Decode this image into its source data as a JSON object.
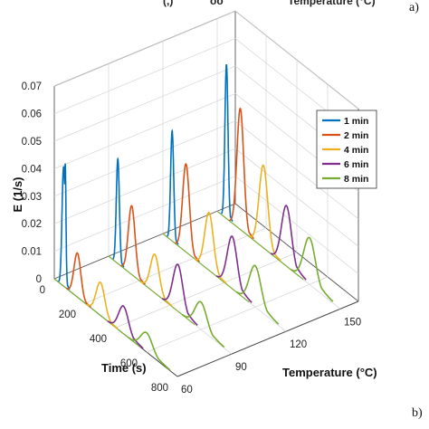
{
  "panel_labels": {
    "top": "a)",
    "bottom": "b)"
  },
  "top_fragment": {
    "left": "(,)",
    "mid": "oo",
    "right": "Temperature (°C)"
  },
  "chart_data": {
    "type": "line",
    "chart_kind": "3d-waterfall",
    "title": "",
    "zlabel": "E (1/s)",
    "xlabel": "Time (s)",
    "ylabel": "Temperature (°C)",
    "zlim": [
      0,
      0.07
    ],
    "xlim": [
      0,
      800
    ],
    "ylim": [
      60,
      160
    ],
    "z_ticks": [
      "0",
      "0.01",
      "0.02",
      "0.03",
      "0.04",
      "0.05",
      "0.06",
      "0.07"
    ],
    "x_ticks": [
      "0",
      "200",
      "400",
      "600",
      "800"
    ],
    "y_ticks": [
      "60",
      "90",
      "120",
      "150"
    ],
    "grid": true,
    "legend_position": "top-right",
    "temperature_slices": [
      60,
      90,
      120,
      150
    ],
    "series": [
      {
        "name": "1 min",
        "color": "#0072BD",
        "pulse_peak_time": 60,
        "peaks": [
          0.043,
          0.038,
          0.04,
          0.056
        ]
      },
      {
        "name": "2 min",
        "color": "#D95319",
        "pulse_peak_time": 150,
        "peaks": [
          0.016,
          0.025,
          0.032,
          0.044
        ]
      },
      {
        "name": "4 min",
        "color": "#EDB120",
        "pulse_peak_time": 300,
        "peaks": [
          0.012,
          0.014,
          0.021,
          0.03
        ]
      },
      {
        "name": "6 min",
        "color": "#7E2F8E",
        "pulse_peak_time": 450,
        "peaks": [
          0.01,
          0.017,
          0.019,
          0.022
        ]
      },
      {
        "name": "8 min",
        "color": "#77AC30",
        "pulse_peak_time": 600,
        "peaks": [
          0.007,
          0.01,
          0.015,
          0.017
        ]
      }
    ]
  }
}
